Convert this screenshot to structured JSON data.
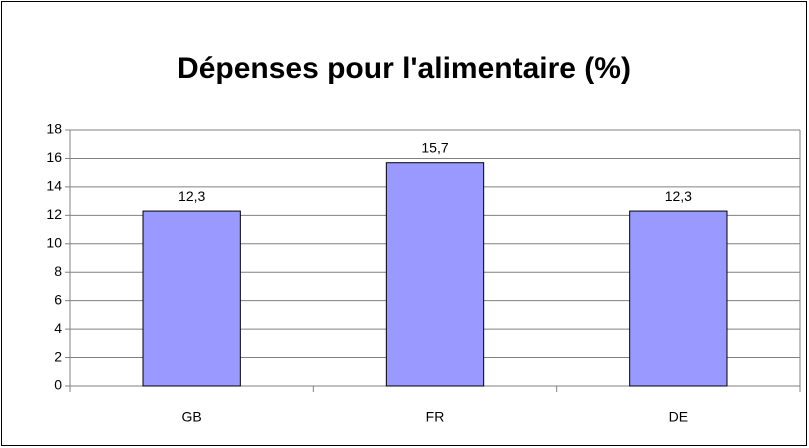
{
  "chart_data": {
    "type": "bar",
    "title": "Dépenses pour l'alimentaire (%)",
    "categories": [
      "GB",
      "FR",
      "DE"
    ],
    "values": [
      12.3,
      15.7,
      12.3
    ],
    "value_labels": [
      "12,3",
      "15,7",
      "12,3"
    ],
    "color": "#9999ff",
    "ylim": [
      0,
      18
    ],
    "yticks": [
      0,
      2,
      4,
      6,
      8,
      10,
      12,
      14,
      16,
      18
    ],
    "grid": true
  }
}
